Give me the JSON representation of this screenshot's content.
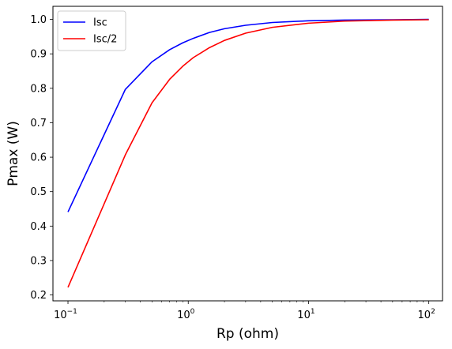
{
  "chart_data": {
    "type": "line",
    "xlabel": "Rp (ohm)",
    "ylabel": "Pmax (W)",
    "xscale": "log",
    "xlim": [
      0.075,
      130
    ],
    "ylim": [
      0.183,
      1.038
    ],
    "x_ticks": [
      {
        "value": 0.1,
        "base": "10",
        "exp": "−1"
      },
      {
        "value": 1,
        "base": "10",
        "exp": "0"
      },
      {
        "value": 10,
        "base": "10",
        "exp": "1"
      },
      {
        "value": 100,
        "base": "10",
        "exp": "2"
      }
    ],
    "y_ticks": [
      "0.2",
      "0.3",
      "0.4",
      "0.5",
      "0.6",
      "0.7",
      "0.8",
      "0.9",
      "1.0"
    ],
    "grid": false,
    "legend_placement": "top-left",
    "x": [
      0.1,
      0.3,
      0.5,
      0.7,
      0.9,
      1.1,
      1.5,
      2,
      3,
      5,
      10,
      20,
      50,
      100
    ],
    "series": [
      {
        "name": "Isc",
        "color": "#0000ff",
        "values": [
          0.441,
          0.797,
          0.877,
          0.912,
          0.932,
          0.945,
          0.962,
          0.973,
          0.983,
          0.991,
          0.996,
          0.998,
          0.999,
          1.0
        ]
      },
      {
        "name": "Isc/2",
        "color": "#ff0000",
        "values": [
          0.222,
          0.607,
          0.758,
          0.826,
          0.864,
          0.889,
          0.918,
          0.939,
          0.96,
          0.977,
          0.989,
          0.995,
          0.998,
          0.999
        ]
      }
    ]
  }
}
